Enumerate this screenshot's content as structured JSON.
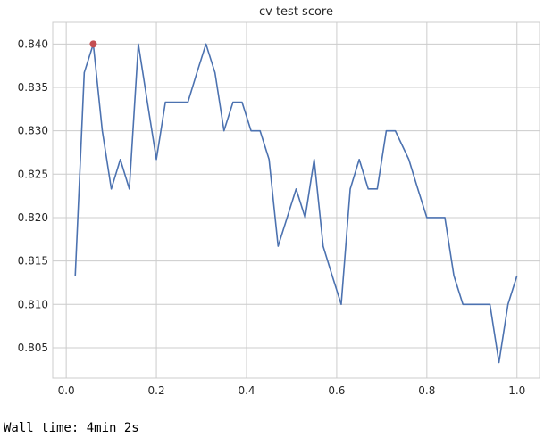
{
  "chart_data": {
    "type": "line",
    "title": "cv test score",
    "xlabel": "",
    "ylabel": "",
    "xlim": [
      -0.03,
      1.05
    ],
    "ylim": [
      0.8015,
      0.8425
    ],
    "grid": true,
    "xticks": [
      0.0,
      0.2,
      0.4,
      0.6,
      0.8,
      1.0
    ],
    "xtick_labels": [
      "0.0",
      "0.2",
      "0.4",
      "0.6",
      "0.8",
      "1.0"
    ],
    "yticks": [
      0.805,
      0.81,
      0.815,
      0.82,
      0.825,
      0.83,
      0.835,
      0.84
    ],
    "ytick_labels": [
      "0.805",
      "0.810",
      "0.815",
      "0.820",
      "0.825",
      "0.830",
      "0.835",
      "0.840"
    ],
    "series": [
      {
        "color": "#4c72b0",
        "x": [
          0.02,
          0.04,
          0.06,
          0.08,
          0.1,
          0.12,
          0.14,
          0.16,
          0.18,
          0.2,
          0.22,
          0.24,
          0.27,
          0.29,
          0.31,
          0.33,
          0.35,
          0.37,
          0.39,
          0.41,
          0.43,
          0.45,
          0.47,
          0.49,
          0.51,
          0.53,
          0.55,
          0.57,
          0.59,
          0.61,
          0.63,
          0.65,
          0.67,
          0.69,
          0.71,
          0.73,
          0.76,
          0.78,
          0.8,
          0.82,
          0.84,
          0.86,
          0.88,
          0.9,
          0.92,
          0.94,
          0.96,
          0.98,
          1.0
        ],
        "y": [
          0.8133,
          0.8367,
          0.84,
          0.83,
          0.8233,
          0.8267,
          0.8233,
          0.84,
          0.8333,
          0.8267,
          0.8333,
          0.8333,
          0.8333,
          0.8367,
          0.84,
          0.8367,
          0.83,
          0.8333,
          0.8333,
          0.83,
          0.83,
          0.8267,
          0.8167,
          0.82,
          0.8233,
          0.82,
          0.8267,
          0.8167,
          0.8133,
          0.81,
          0.8233,
          0.8267,
          0.8233,
          0.8233,
          0.83,
          0.83,
          0.8267,
          0.8233,
          0.82,
          0.82,
          0.82,
          0.8133,
          0.81,
          0.81,
          0.81,
          0.81,
          0.8033,
          0.81,
          0.8133
        ]
      }
    ],
    "best_point": {
      "x": 0.06,
      "y": 0.84,
      "color": "#c44e52"
    }
  },
  "footer": {
    "wall_time": "Wall time: 4min 2s"
  }
}
